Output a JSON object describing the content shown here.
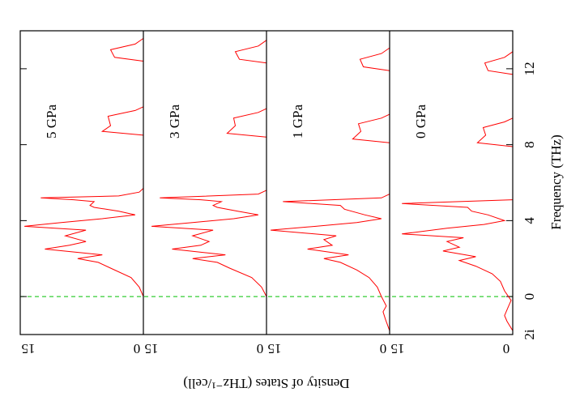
{
  "chart_data": {
    "type": "line",
    "xlabel": "Frequency (THz)",
    "ylabel": "Density of States (THz⁻¹/cell)",
    "xlim": [
      -2,
      14
    ],
    "xticks": [
      {
        "value": -2,
        "label": "2i"
      },
      0,
      4,
      8,
      12
    ],
    "ylim": [
      0,
      15
    ],
    "yticks": [
      15,
      0
    ],
    "reference_line": {
      "x": 0,
      "color": "#00c000"
    },
    "series": [
      {
        "name": "5 GPa",
        "color": "#ff0000",
        "x": [
          0,
          0.5,
          1,
          1.5,
          1.8,
          2,
          2.2,
          2.5,
          2.7,
          2.9,
          3.2,
          3.5,
          3.7,
          3.9,
          4.1,
          4.3,
          4.5,
          4.7,
          4.8,
          5,
          5.1,
          5.2,
          5.3,
          5.5,
          5.7,
          null,
          8.5,
          8.7,
          9,
          9.5,
          9.8,
          10,
          null,
          12.4,
          12.6,
          13,
          13.3,
          13.6
        ],
        "values": [
          0,
          0.5,
          1.5,
          4,
          5.5,
          8,
          5,
          12,
          9,
          7,
          9.5,
          7,
          14.5,
          10,
          5,
          1,
          3,
          6,
          6.5,
          6,
          8.5,
          12.5,
          3,
          0.5,
          0,
          null,
          0,
          5,
          4,
          4.3,
          1,
          0,
          null,
          0,
          3.5,
          4,
          1,
          0
        ]
      },
      {
        "name": "3 GPa",
        "color": "#ff0000",
        "x": [
          0,
          0.5,
          1,
          1.5,
          1.8,
          2,
          2.2,
          2.5,
          2.7,
          2.9,
          3.2,
          3.5,
          3.7,
          3.9,
          4.1,
          4.3,
          4.5,
          4.7,
          4.8,
          5,
          5.1,
          5.2,
          5.4,
          5.6,
          null,
          8.4,
          8.6,
          9,
          9.4,
          9.7,
          9.9,
          null,
          12.3,
          12.5,
          12.9,
          13.2,
          13.5
        ],
        "values": [
          0,
          0.6,
          1.8,
          4.5,
          6,
          9,
          5,
          11.5,
          8,
          7,
          9,
          6.5,
          14,
          9,
          4,
          1,
          3.5,
          6,
          6.5,
          5.5,
          8,
          13,
          1,
          0,
          null,
          0,
          4.8,
          3.8,
          4,
          1,
          0,
          null,
          0,
          3.3,
          3.8,
          1,
          0
        ]
      },
      {
        "name": "1 GPa",
        "color": "#ff0000",
        "x": [
          -1.8,
          -1.2,
          -0.8,
          -0.5,
          0,
          0.5,
          1,
          1.4,
          1.8,
          2,
          2.2,
          2.5,
          2.7,
          3,
          3.2,
          3.5,
          3.7,
          3.9,
          4.1,
          4.3,
          4.6,
          4.8,
          5,
          5.2,
          5.4,
          null,
          8.1,
          8.3,
          8.7,
          9.1,
          9.4,
          9.6,
          null,
          11.9,
          12.1,
          12.5,
          12.8,
          13.1
        ],
        "values": [
          0,
          0.5,
          0.8,
          0.4,
          1,
          1.5,
          2.5,
          4,
          6,
          8,
          5,
          10,
          7,
          8,
          6.5,
          14.5,
          9,
          4,
          1,
          3,
          5.5,
          6,
          13,
          1,
          0,
          null,
          0,
          4.5,
          3.5,
          3.8,
          1,
          0,
          null,
          0,
          3.2,
          3.6,
          1,
          0
        ]
      },
      {
        "name": "0 GPa",
        "color": "#ff0000",
        "x": [
          -1.8,
          -1.3,
          -1,
          -0.6,
          -0.2,
          0.3,
          0.8,
          1.2,
          1.6,
          1.9,
          2.1,
          2.4,
          2.6,
          2.9,
          3.1,
          3.3,
          3.6,
          3.8,
          4,
          4.3,
          4.5,
          4.7,
          4.9,
          5.1,
          null,
          7.9,
          8.1,
          8.5,
          8.9,
          9.2,
          9.4,
          null,
          11.7,
          11.9,
          12.3,
          12.6,
          12.9
        ],
        "values": [
          0,
          0.7,
          1,
          0.6,
          0.2,
          1,
          1.5,
          2.5,
          4.5,
          6.5,
          4.5,
          8.5,
          6.5,
          8,
          6,
          13.5,
          8,
          3.5,
          1,
          3,
          5,
          5.5,
          13.5,
          0,
          null,
          0,
          4.3,
          3.3,
          3.6,
          1,
          0,
          null,
          0,
          3,
          3.4,
          1,
          0
        ]
      }
    ]
  }
}
